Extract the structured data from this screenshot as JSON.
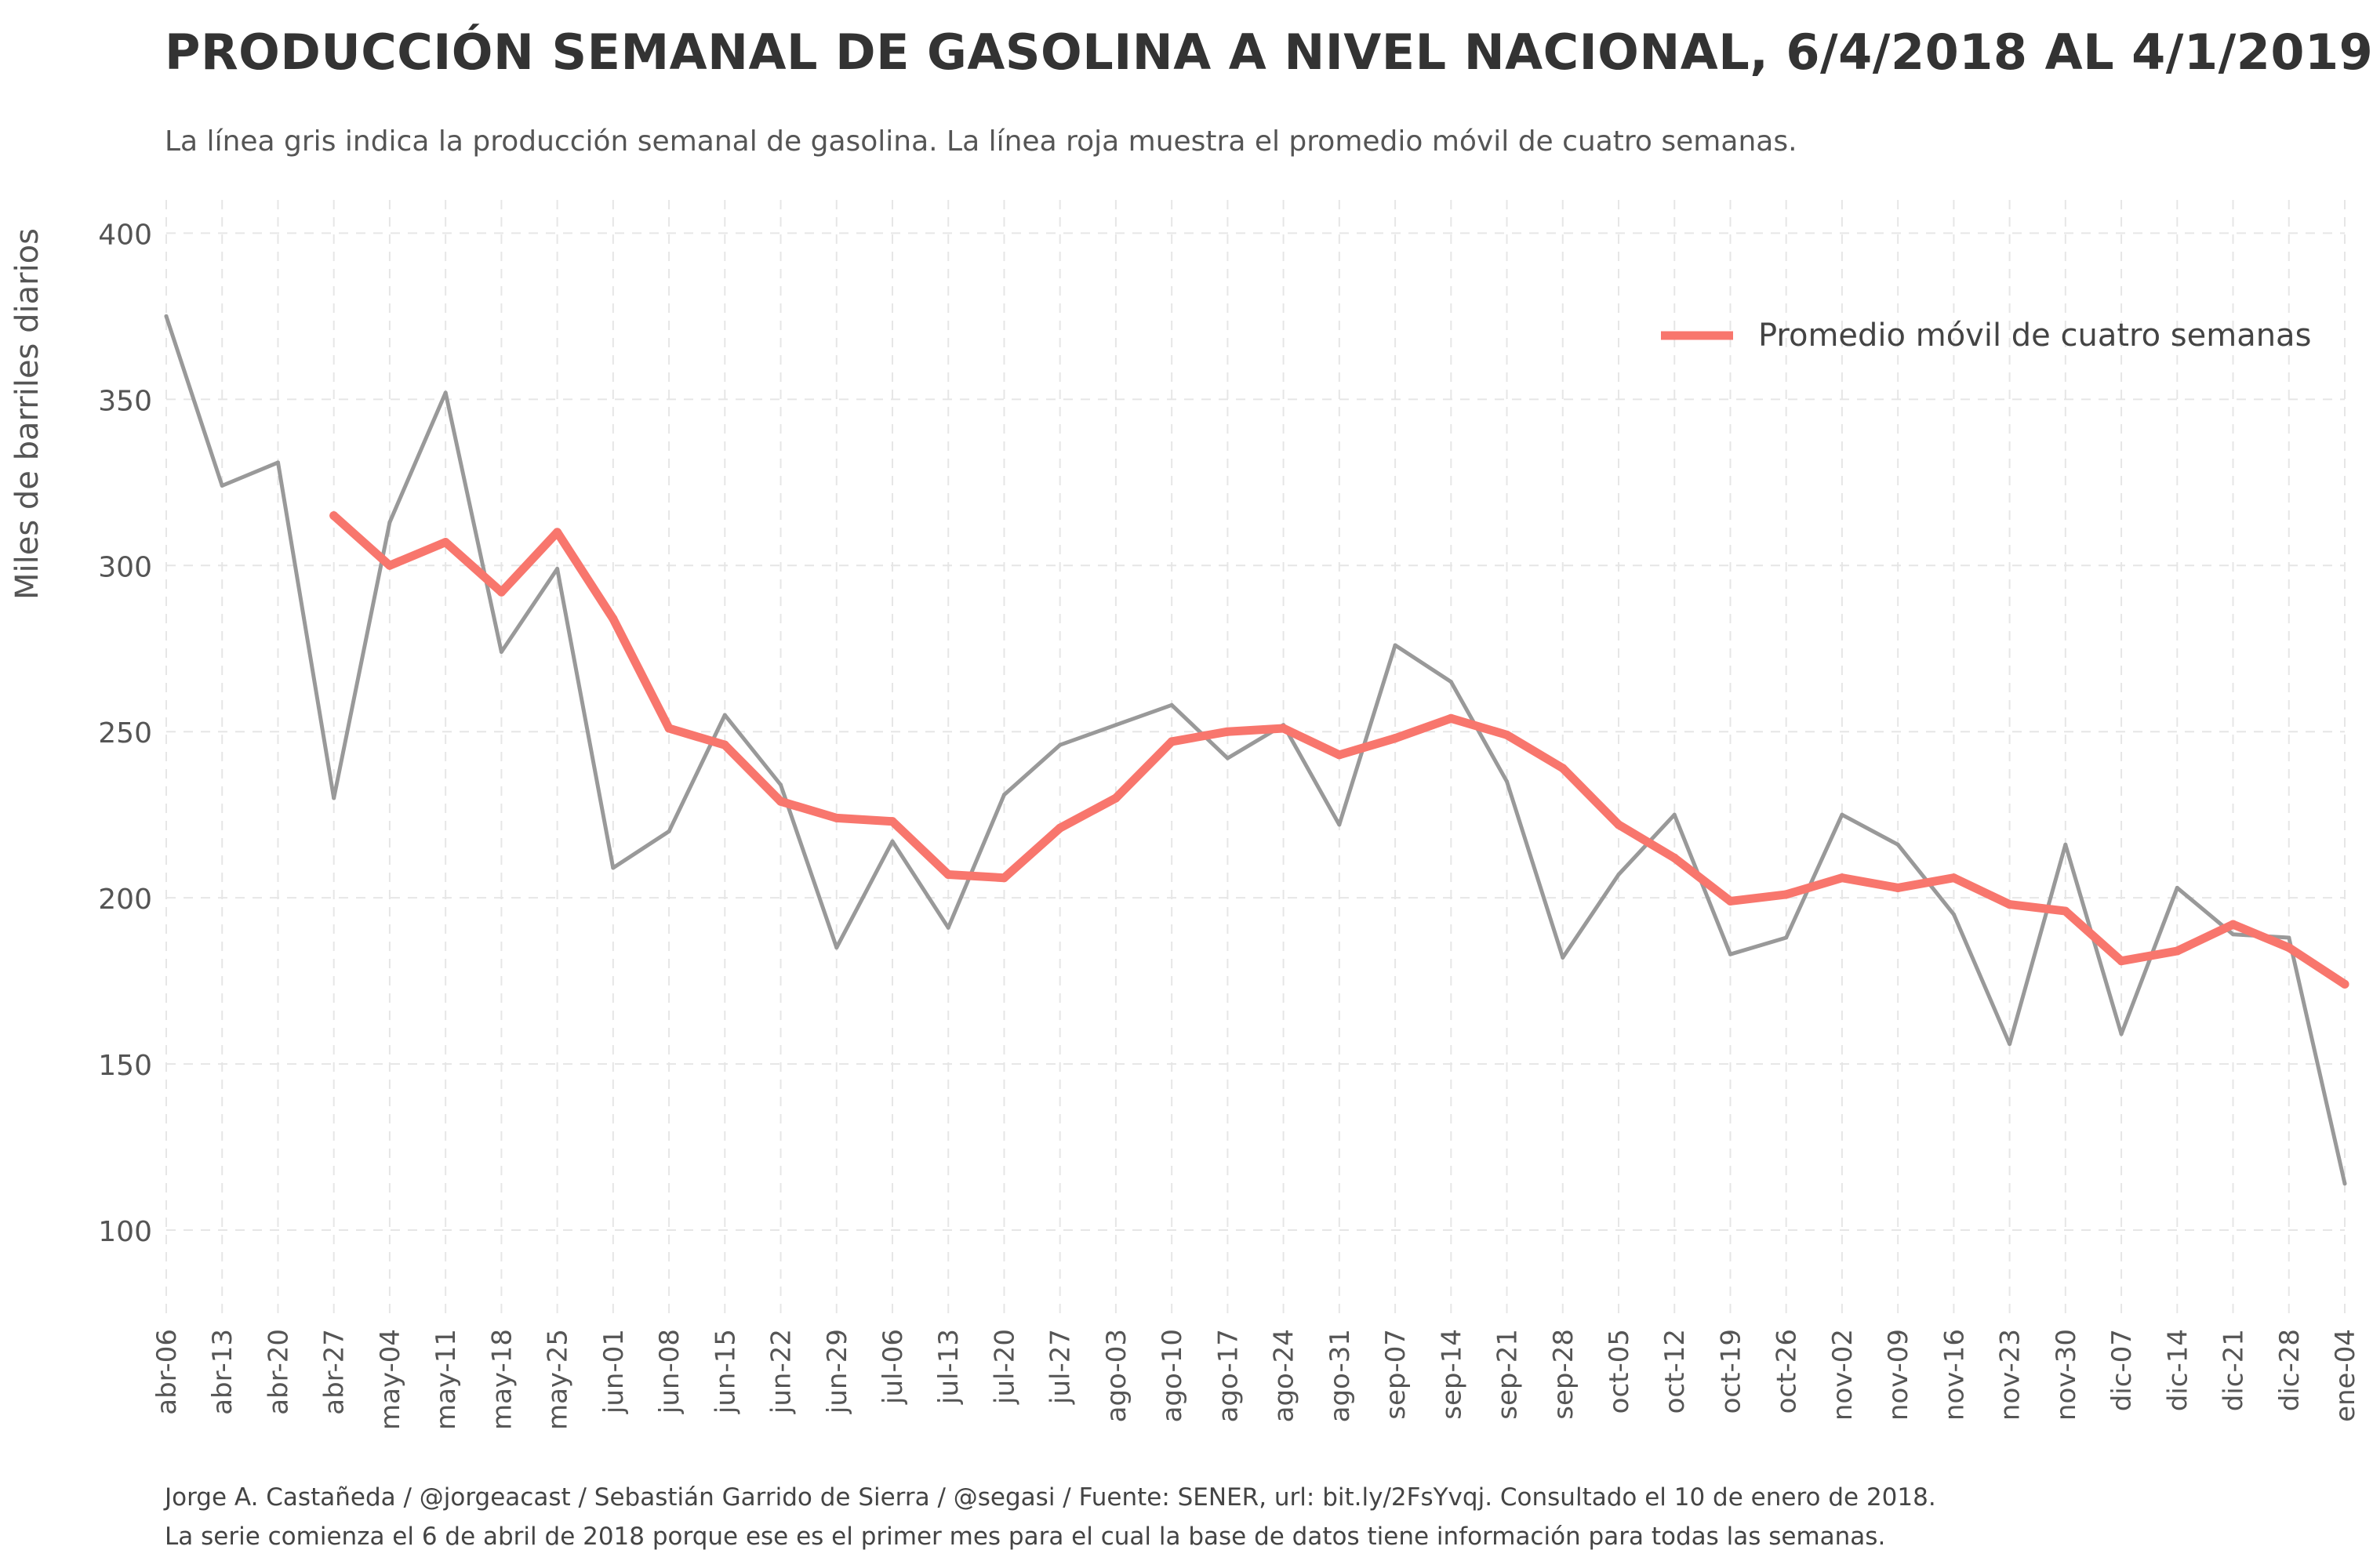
{
  "title": "PRODUCCIÓN SEMANAL DE GASOLINA A NIVEL NACIONAL, 6/4/2018 AL 4/1/2019",
  "subtitle": "La línea gris indica la producción semanal de gasolina. La línea roja muestra el promedio móvil de cuatro semanas.",
  "caption_line1": "Jorge A. Castañeda / @jorgeacast / Sebastián Garrido de Sierra / @segasi / Fuente: SENER, url: bit.ly/2FsYvqj. Consultado el 10 de enero de 2018.",
  "caption_line2": " La serie comienza el 6 de abril de 2018 porque ese es el primer mes para el cual la base de datos tiene información para todas las semanas.",
  "chart_data": {
    "type": "line",
    "ylabel": "Miles de barriles diarios",
    "xlabel": "",
    "ylim": [
      75,
      410
    ],
    "yticks": [
      100,
      150,
      200,
      250,
      300,
      350,
      400
    ],
    "grid": true,
    "legend_position": "top-right",
    "categories": [
      "abr-06",
      "abr-13",
      "abr-20",
      "abr-27",
      "may-04",
      "may-11",
      "may-18",
      "may-25",
      "jun-01",
      "jun-08",
      "jun-15",
      "jun-22",
      "jun-29",
      "jul-06",
      "jul-13",
      "jul-20",
      "jul-27",
      "ago-03",
      "ago-10",
      "ago-17",
      "ago-24",
      "ago-31",
      "sep-07",
      "sep-14",
      "sep-21",
      "sep-28",
      "oct-05",
      "oct-12",
      "oct-19",
      "oct-26",
      "nov-02",
      "nov-09",
      "nov-16",
      "nov-23",
      "nov-30",
      "dic-07",
      "dic-14",
      "dic-21",
      "dic-28",
      "ene-04"
    ],
    "series": [
      {
        "name": "",
        "color": "#999999",
        "values": [
          375,
          324,
          331,
          230,
          313,
          352,
          274,
          299,
          209,
          220,
          255,
          234,
          185,
          217,
          191,
          231,
          246,
          252,
          258,
          242,
          252,
          222,
          276,
          265,
          235,
          182,
          207,
          225,
          183,
          188,
          225,
          216,
          195,
          156,
          216,
          159,
          203,
          189,
          188,
          114
        ]
      },
      {
        "name": "Promedio móvil de cuatro semanas",
        "color": "#f8766d",
        "values": [
          null,
          null,
          null,
          315,
          300,
          307,
          292,
          310,
          284,
          251,
          246,
          229,
          224,
          223,
          207,
          206,
          221,
          230,
          247,
          250,
          251,
          243,
          248,
          254,
          249,
          239,
          222,
          212,
          199,
          201,
          206,
          203,
          206,
          198,
          196,
          181,
          184,
          192,
          185,
          174
        ]
      }
    ]
  }
}
